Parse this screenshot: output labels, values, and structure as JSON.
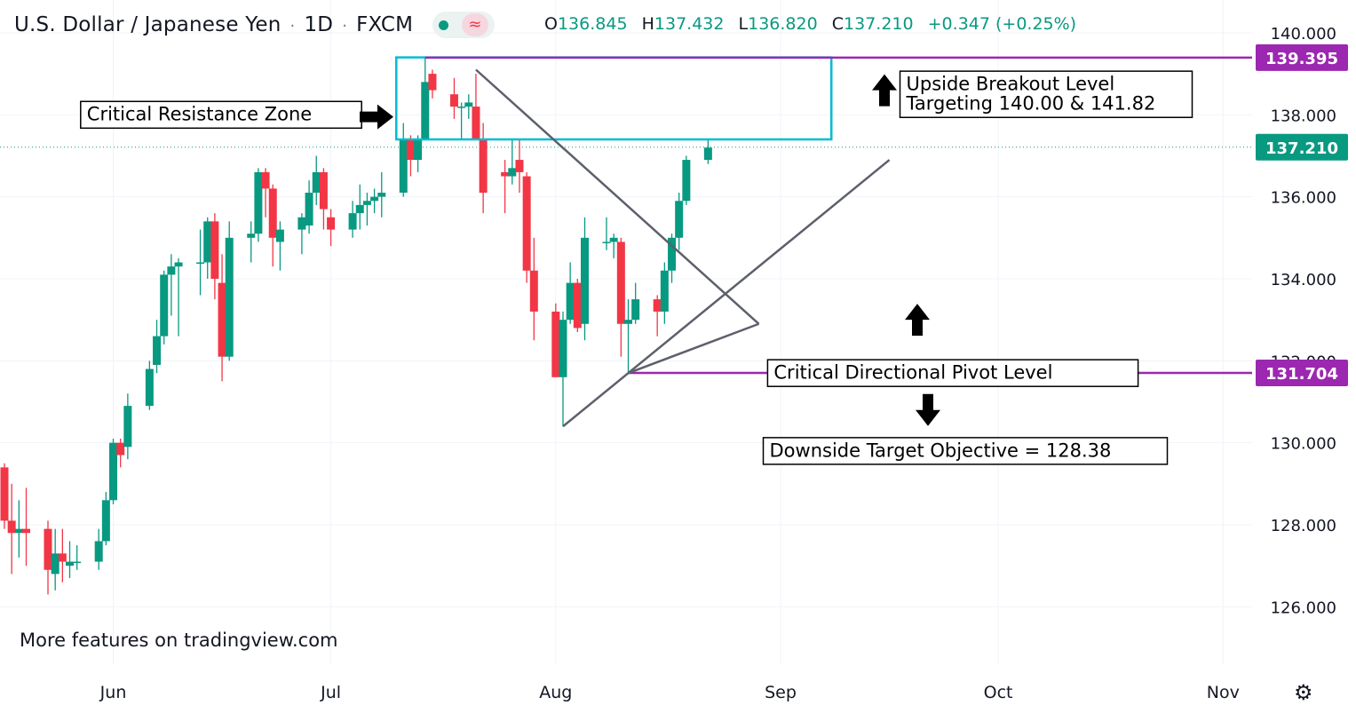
{
  "header": {
    "symbol_name": "U.S. Dollar / Japanese Yen",
    "interval": "1D",
    "source": "FXCM",
    "separator": "·",
    "waves_glyph": "≈",
    "ohlc": {
      "open_label": "O",
      "open": "136.845",
      "high_label": "H",
      "high": "137.432",
      "low_label": "L",
      "low": "136.820",
      "close_label": "C",
      "close": "137.210",
      "change": "+0.347 (+0.25%)"
    }
  },
  "footer_text": "More features on tradingview.com",
  "colors": {
    "up": "#089981",
    "down": "#f23645",
    "annotation_line": "#9c27b0",
    "resistance_box": "#00bcd4",
    "trendline": "#5d606b",
    "last_price_bg": "#089981",
    "level_bg": "#9c27b0"
  },
  "chart_data": {
    "type": "candlestick",
    "symbol": "USDJPY",
    "timeframe": "1D",
    "y_axis": {
      "range": [
        124.6,
        140.8
      ],
      "ticks": [
        "126.000",
        "128.000",
        "130.000",
        "132.000",
        "134.000",
        "136.000",
        "138.000",
        "140.000"
      ],
      "position": "right"
    },
    "x_axis": {
      "tick_labels": [
        "Jun",
        "Jul",
        "Aug",
        "Sep",
        "Oct",
        "Nov"
      ],
      "tick_dates": [
        "2022-06-01",
        "2022-07-01",
        "2022-08-01",
        "2022-09-01",
        "2022-10-01",
        "2022-11-01"
      ],
      "range": [
        "2022-05-17",
        "2022-11-05"
      ]
    },
    "grid": true,
    "last_price": {
      "value": 137.21,
      "label": "137.210",
      "style": "dotted"
    },
    "candles": [
      {
        "date": "2022-05-17",
        "open": 129.4,
        "high": 129.5,
        "low": 127.9,
        "close": 128.1
      },
      {
        "date": "2022-05-18",
        "open": 128.1,
        "high": 129.0,
        "low": 126.8,
        "close": 127.8
      },
      {
        "date": "2022-05-19",
        "open": 127.8,
        "high": 128.6,
        "low": 127.2,
        "close": 127.9
      },
      {
        "date": "2022-05-20",
        "open": 127.9,
        "high": 128.9,
        "low": 127.0,
        "close": 127.8
      },
      {
        "date": "2022-05-23",
        "open": 127.9,
        "high": 128.1,
        "low": 126.3,
        "close": 126.9
      },
      {
        "date": "2022-05-24",
        "open": 126.8,
        "high": 127.9,
        "low": 126.4,
        "close": 127.3
      },
      {
        "date": "2022-05-25",
        "open": 127.3,
        "high": 127.9,
        "low": 126.6,
        "close": 127.1
      },
      {
        "date": "2022-05-26",
        "open": 127.0,
        "high": 127.6,
        "low": 126.7,
        "close": 127.1
      },
      {
        "date": "2022-05-27",
        "open": 127.1,
        "high": 127.5,
        "low": 126.9,
        "close": 127.1
      },
      {
        "date": "2022-05-30",
        "open": 127.1,
        "high": 127.9,
        "low": 126.9,
        "close": 127.6
      },
      {
        "date": "2022-05-31",
        "open": 127.6,
        "high": 128.8,
        "low": 127.5,
        "close": 128.6
      },
      {
        "date": "2022-06-01",
        "open": 128.6,
        "high": 130.1,
        "low": 128.5,
        "close": 130.0
      },
      {
        "date": "2022-06-02",
        "open": 130.0,
        "high": 130.1,
        "low": 129.4,
        "close": 129.7
      },
      {
        "date": "2022-06-03",
        "open": 129.9,
        "high": 131.2,
        "low": 129.6,
        "close": 130.9
      },
      {
        "date": "2022-06-06",
        "open": 130.9,
        "high": 132.0,
        "low": 130.8,
        "close": 131.8
      },
      {
        "date": "2022-06-07",
        "open": 131.9,
        "high": 133.0,
        "low": 131.7,
        "close": 132.6
      },
      {
        "date": "2022-06-08",
        "open": 132.6,
        "high": 134.2,
        "low": 132.4,
        "close": 134.1
      },
      {
        "date": "2022-06-09",
        "open": 134.1,
        "high": 134.6,
        "low": 133.1,
        "close": 134.3
      },
      {
        "date": "2022-06-10",
        "open": 134.3,
        "high": 134.5,
        "low": 132.6,
        "close": 134.4
      },
      {
        "date": "2022-06-13",
        "open": 134.4,
        "high": 135.2,
        "low": 133.6,
        "close": 134.4
      },
      {
        "date": "2022-06-14",
        "open": 134.4,
        "high": 135.5,
        "low": 134.0,
        "close": 135.4
      },
      {
        "date": "2022-06-15",
        "open": 135.4,
        "high": 135.6,
        "low": 133.5,
        "close": 134.0
      },
      {
        "date": "2022-06-16",
        "open": 133.9,
        "high": 134.6,
        "low": 131.5,
        "close": 132.1
      },
      {
        "date": "2022-06-17",
        "open": 132.1,
        "high": 135.4,
        "low": 132.0,
        "close": 135.0
      },
      {
        "date": "2022-06-20",
        "open": 135.0,
        "high": 135.4,
        "low": 134.4,
        "close": 135.1
      },
      {
        "date": "2022-06-21",
        "open": 135.1,
        "high": 136.7,
        "low": 134.9,
        "close": 136.6
      },
      {
        "date": "2022-06-22",
        "open": 136.6,
        "high": 136.7,
        "low": 135.5,
        "close": 136.2
      },
      {
        "date": "2022-06-23",
        "open": 136.2,
        "high": 136.3,
        "low": 134.3,
        "close": 135.0
      },
      {
        "date": "2022-06-24",
        "open": 134.9,
        "high": 135.4,
        "low": 134.2,
        "close": 135.2
      },
      {
        "date": "2022-06-27",
        "open": 135.2,
        "high": 135.6,
        "low": 134.6,
        "close": 135.5
      },
      {
        "date": "2022-06-28",
        "open": 135.3,
        "high": 136.4,
        "low": 135.1,
        "close": 136.1
      },
      {
        "date": "2022-06-29",
        "open": 136.1,
        "high": 137.0,
        "low": 135.8,
        "close": 136.6
      },
      {
        "date": "2022-06-30",
        "open": 136.6,
        "high": 136.7,
        "low": 135.2,
        "close": 135.7
      },
      {
        "date": "2022-07-01",
        "open": 135.5,
        "high": 135.7,
        "low": 134.8,
        "close": 135.2
      },
      {
        "date": "2022-07-04",
        "open": 135.2,
        "high": 135.9,
        "low": 135.0,
        "close": 135.6
      },
      {
        "date": "2022-07-05",
        "open": 135.6,
        "high": 136.3,
        "low": 135.2,
        "close": 135.8
      },
      {
        "date": "2022-07-06",
        "open": 135.8,
        "high": 136.1,
        "low": 135.3,
        "close": 135.9
      },
      {
        "date": "2022-07-07",
        "open": 135.9,
        "high": 136.2,
        "low": 135.6,
        "close": 136.0
      },
      {
        "date": "2022-07-08",
        "open": 136.0,
        "high": 136.6,
        "low": 135.5,
        "close": 136.1
      },
      {
        "date": "2022-07-11",
        "open": 136.1,
        "high": 137.8,
        "low": 136.0,
        "close": 137.4
      },
      {
        "date": "2022-07-12",
        "open": 137.4,
        "high": 137.5,
        "low": 136.5,
        "close": 136.9
      },
      {
        "date": "2022-07-13",
        "open": 136.9,
        "high": 137.5,
        "low": 136.6,
        "close": 137.4
      },
      {
        "date": "2022-07-14",
        "open": 137.4,
        "high": 139.4,
        "low": 137.4,
        "close": 138.8
      },
      {
        "date": "2022-07-15",
        "open": 139.0,
        "high": 139.1,
        "low": 138.4,
        "close": 138.6
      },
      {
        "date": "2022-07-18",
        "open": 138.5,
        "high": 138.9,
        "low": 137.9,
        "close": 138.2
      },
      {
        "date": "2022-07-19",
        "open": 138.2,
        "high": 138.3,
        "low": 137.4,
        "close": 138.2
      },
      {
        "date": "2022-07-20",
        "open": 138.2,
        "high": 138.5,
        "low": 137.9,
        "close": 138.3
      },
      {
        "date": "2022-07-21",
        "open": 138.2,
        "high": 139.0,
        "low": 137.4,
        "close": 137.4
      },
      {
        "date": "2022-07-22",
        "open": 137.4,
        "high": 137.8,
        "low": 135.6,
        "close": 136.1
      },
      {
        "date": "2022-07-25",
        "open": 136.6,
        "high": 136.9,
        "low": 135.6,
        "close": 136.5
      },
      {
        "date": "2022-07-26",
        "open": 136.5,
        "high": 137.4,
        "low": 136.3,
        "close": 136.7
      },
      {
        "date": "2022-07-27",
        "open": 136.9,
        "high": 137.4,
        "low": 136.1,
        "close": 136.6
      },
      {
        "date": "2022-07-28",
        "open": 136.5,
        "high": 136.6,
        "low": 133.9,
        "close": 134.2
      },
      {
        "date": "2022-07-29",
        "open": 134.2,
        "high": 135.0,
        "low": 132.5,
        "close": 133.2
      },
      {
        "date": "2022-08-01",
        "open": 133.2,
        "high": 133.4,
        "low": 131.6,
        "close": 131.6
      },
      {
        "date": "2022-08-02",
        "open": 131.6,
        "high": 133.2,
        "low": 130.4,
        "close": 133.0
      },
      {
        "date": "2022-08-03",
        "open": 133.0,
        "high": 134.4,
        "low": 132.9,
        "close": 133.9
      },
      {
        "date": "2022-08-04",
        "open": 133.9,
        "high": 134.0,
        "low": 132.7,
        "close": 132.8
      },
      {
        "date": "2022-08-05",
        "open": 132.9,
        "high": 135.5,
        "low": 132.5,
        "close": 135.0
      },
      {
        "date": "2022-08-08",
        "open": 134.9,
        "high": 135.5,
        "low": 134.7,
        "close": 134.9
      },
      {
        "date": "2022-08-09",
        "open": 134.9,
        "high": 135.1,
        "low": 134.5,
        "close": 135.0
      },
      {
        "date": "2022-08-10",
        "open": 134.9,
        "high": 135.0,
        "low": 132.1,
        "close": 132.9
      },
      {
        "date": "2022-08-11",
        "open": 132.9,
        "high": 133.5,
        "low": 131.7,
        "close": 133.0
      },
      {
        "date": "2022-08-12",
        "open": 133.0,
        "high": 133.9,
        "low": 132.9,
        "close": 133.5
      },
      {
        "date": "2022-08-15",
        "open": 133.5,
        "high": 133.6,
        "low": 132.6,
        "close": 133.2
      },
      {
        "date": "2022-08-16",
        "open": 133.2,
        "high": 134.4,
        "low": 132.9,
        "close": 134.2
      },
      {
        "date": "2022-08-17",
        "open": 134.2,
        "high": 135.1,
        "low": 133.9,
        "close": 135.0
      },
      {
        "date": "2022-08-18",
        "open": 135.0,
        "high": 136.1,
        "low": 134.7,
        "close": 135.9
      },
      {
        "date": "2022-08-19",
        "open": 135.9,
        "high": 137.0,
        "low": 135.8,
        "close": 136.9
      },
      {
        "date": "2022-08-22",
        "open": 136.9,
        "high": 137.4,
        "low": 136.8,
        "close": 137.2
      }
    ],
    "annotations": {
      "resistance_box": {
        "date_from": "2022-07-11",
        "date_to": "2022-09-08",
        "price_from": 137.4,
        "price_to": 139.4
      },
      "levels": [
        {
          "price": 139.395,
          "label": "139.395",
          "date_from": "2022-07-14"
        },
        {
          "price": 131.704,
          "label": "131.704",
          "date_from": "2022-08-11"
        }
      ],
      "trendlines": [
        {
          "from": {
            "date": "2022-07-21",
            "price": 139.1
          },
          "to": {
            "date": "2022-08-29",
            "price": 132.9
          }
        },
        {
          "from": {
            "date": "2022-08-02",
            "price": 130.4
          },
          "to": {
            "date": "2022-09-16",
            "price": 136.9
          }
        },
        {
          "from": {
            "date": "2022-08-11",
            "price": 131.7
          },
          "to": {
            "date": "2022-08-29",
            "price": 132.9
          }
        }
      ],
      "labels": [
        {
          "text": "Critical Resistance Zone"
        },
        {
          "text_line1": "Upside Breakout Level",
          "text_line2": "Targeting 140.00 & 141.82"
        },
        {
          "text": "Critical Directional Pivot Level"
        },
        {
          "text": "Downside Target Objective  = 128.38"
        }
      ]
    }
  }
}
